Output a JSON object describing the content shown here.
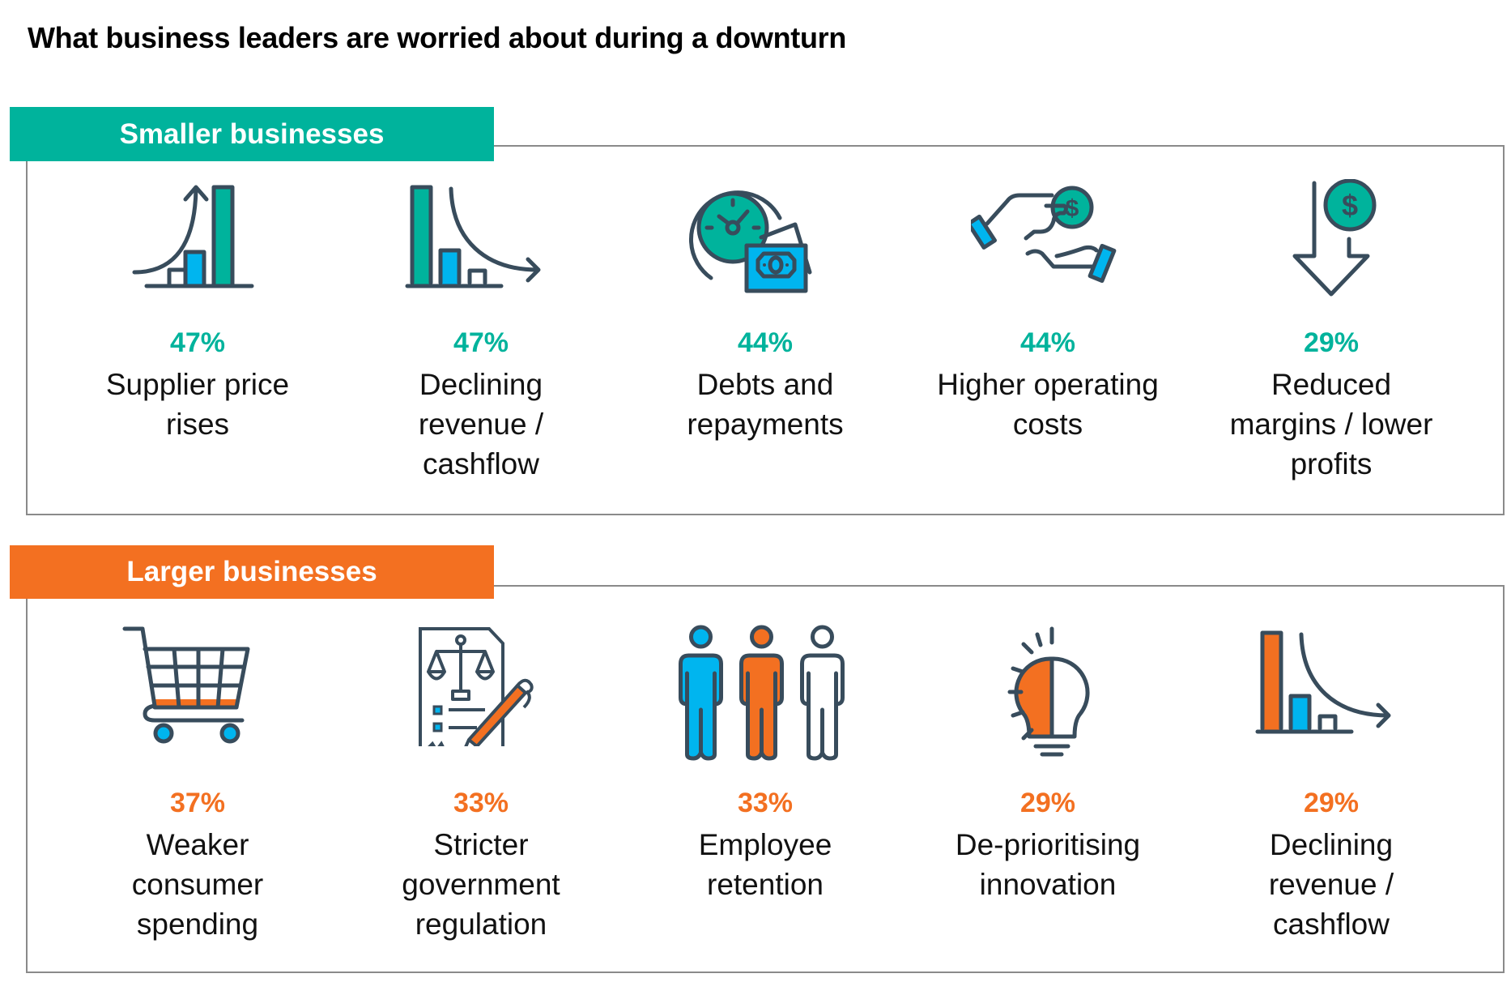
{
  "title": "What business leaders are worried about during a downturn",
  "colors": {
    "teal": "#00b39c",
    "orange": "#f37021",
    "blue": "#00b5ef",
    "dark": "#384c5c"
  },
  "sections": [
    {
      "label": "Smaller businesses",
      "items": [
        {
          "pct": "47%",
          "lines": [
            "Supplier price",
            "rises"
          ],
          "icon": "rising-bar-chart-icon"
        },
        {
          "pct": "47%",
          "lines": [
            "Declining",
            "revenue /",
            "cashflow"
          ],
          "icon": "declining-bar-chart-icon"
        },
        {
          "pct": "44%",
          "lines": [
            "Debts and",
            "repayments"
          ],
          "icon": "clock-money-icon"
        },
        {
          "pct": "44%",
          "lines": [
            "Higher operating",
            "costs"
          ],
          "icon": "hand-coin-icon"
        },
        {
          "pct": "29%",
          "lines": [
            "Reduced",
            "margins / lower",
            "profits"
          ],
          "icon": "down-arrow-dollar-icon"
        }
      ]
    },
    {
      "label": "Larger businesses",
      "items": [
        {
          "pct": "37%",
          "lines": [
            "Weaker",
            "consumer",
            "spending"
          ],
          "icon": "shopping-cart-icon"
        },
        {
          "pct": "33%",
          "lines": [
            "Stricter",
            "government",
            "regulation"
          ],
          "icon": "legal-document-icon"
        },
        {
          "pct": "33%",
          "lines": [
            "Employee",
            "retention"
          ],
          "icon": "people-icon"
        },
        {
          "pct": "29%",
          "lines": [
            "De-prioritising",
            "innovation"
          ],
          "icon": "lightbulb-icon"
        },
        {
          "pct": "29%",
          "lines": [
            "Declining",
            "revenue /",
            "cashflow"
          ],
          "icon": "declining-bar-chart-icon"
        }
      ]
    }
  ],
  "chart_data": {
    "type": "table",
    "title": "What business leaders are worried about during a downturn",
    "groups": [
      {
        "name": "Smaller businesses",
        "categories": [
          "Supplier price rises",
          "Declining revenue / cashflow",
          "Debts and repayments",
          "Higher operating costs",
          "Reduced margins / lower profits"
        ],
        "values": [
          47,
          47,
          44,
          44,
          29
        ],
        "unit": "%"
      },
      {
        "name": "Larger businesses",
        "categories": [
          "Weaker consumer spending",
          "Stricter government regulation",
          "Employee retention",
          "De-prioritising innovation",
          "Declining revenue / cashflow"
        ],
        "values": [
          37,
          33,
          33,
          29,
          29
        ],
        "unit": "%"
      }
    ]
  }
}
